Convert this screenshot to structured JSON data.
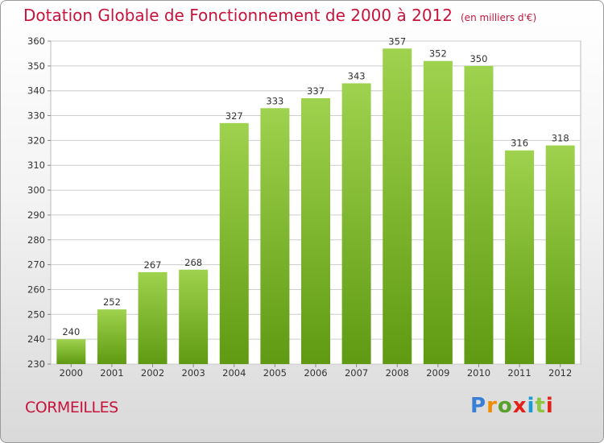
{
  "header": {
    "title": "Dotation Globale de Fonctionnement de 2000 à 2012",
    "unit": "(en milliers d'€)"
  },
  "footer": {
    "commune": "CORMEILLES",
    "logo": "Proxiti"
  },
  "colors": {
    "title": "#c8143c",
    "bar_light": "#9fd24e",
    "bar_dark": "#5f9a12",
    "grid": "#cccccc"
  },
  "chart_data": {
    "type": "bar",
    "categories": [
      "2000",
      "2001",
      "2002",
      "2003",
      "2004",
      "2005",
      "2006",
      "2007",
      "2008",
      "2009",
      "2010",
      "2011",
      "2012"
    ],
    "values": [
      240,
      252,
      267,
      268,
      327,
      333,
      337,
      343,
      357,
      352,
      350,
      316,
      318
    ],
    "ylim": [
      230,
      360
    ],
    "yticks": [
      230,
      240,
      250,
      260,
      270,
      280,
      290,
      300,
      310,
      320,
      330,
      340,
      350,
      360
    ],
    "grid": true,
    "legend": "none"
  }
}
